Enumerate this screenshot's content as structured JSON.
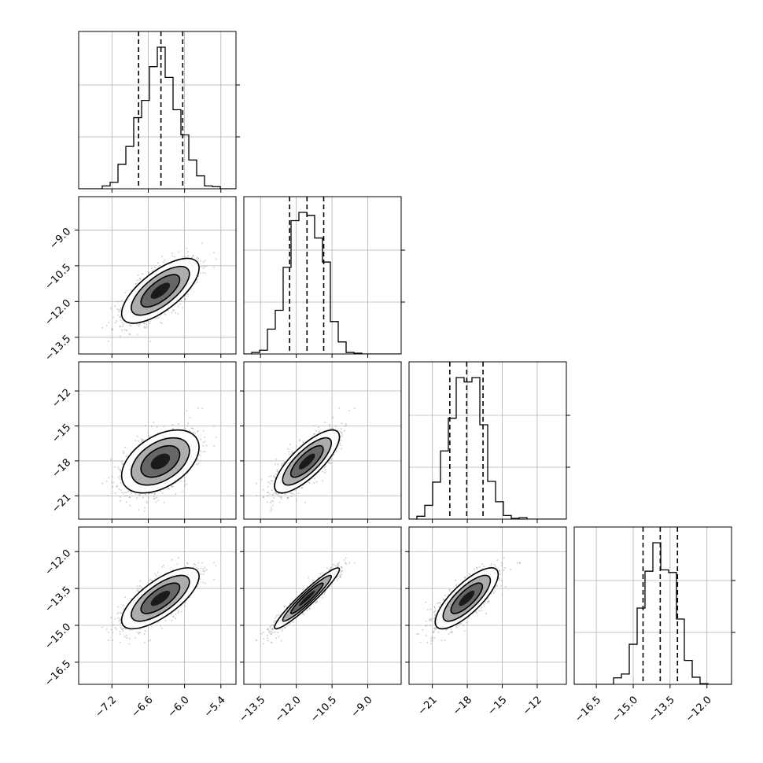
{
  "chart_data": {
    "type": "corner",
    "grid": true,
    "colors": {
      "line": "#000000",
      "quantile": "#000000",
      "scatter": "#9a9a9a",
      "grid": "#b0b0b0"
    },
    "variables": [
      {
        "lim": [
          -7.75,
          -5.15
        ],
        "ticks": [
          -7.2,
          -6.6,
          -6.0,
          -5.4
        ],
        "tick_labels": [
          "−7.2",
          "−6.6",
          "−6.0",
          "−5.4"
        ],
        "mean": -6.4,
        "sd": 0.32,
        "quantiles": [
          -6.76,
          -6.39,
          -6.03
        ]
      },
      {
        "lim": [
          -14.2,
          -7.6
        ],
        "ticks": [
          -13.5,
          -12.0,
          -10.5,
          -9.0
        ],
        "tick_labels": [
          "−13.5",
          "−12.0",
          "−10.5",
          "−9.0"
        ],
        "mean": -11.55,
        "sd": 0.68,
        "quantiles": [
          -12.28,
          -11.55,
          -10.85
        ]
      },
      {
        "lim": [
          -23.0,
          -9.5
        ],
        "ticks": [
          -21,
          -18,
          -15,
          -12
        ],
        "tick_labels": [
          "−21",
          "−18",
          "−15",
          "−12"
        ],
        "mean": -18.05,
        "sd": 1.35,
        "quantiles": [
          -19.5,
          -18.05,
          -16.65
        ]
      },
      {
        "lim": [
          -17.4,
          -11.0
        ],
        "ticks": [
          -16.5,
          -15.0,
          -13.5,
          -12.0
        ],
        "tick_labels": [
          "−16.5",
          "−15.0",
          "−13.5",
          "−12.0"
        ],
        "mean": -13.9,
        "sd": 0.62,
        "quantiles": [
          -14.6,
          -13.9,
          -13.2
        ]
      }
    ],
    "correlations": [
      [
        1.0,
        0.7,
        0.45,
        0.72
      ],
      [
        0.7,
        1.0,
        0.78,
        0.95
      ],
      [
        0.45,
        0.78,
        1.0,
        0.78
      ],
      [
        0.72,
        0.95,
        0.78,
        1.0
      ]
    ],
    "hist_bins": 20,
    "scatter_points": 1100,
    "contour_levels_sigma": [
      1.0,
      1.5,
      2.0
    ]
  }
}
